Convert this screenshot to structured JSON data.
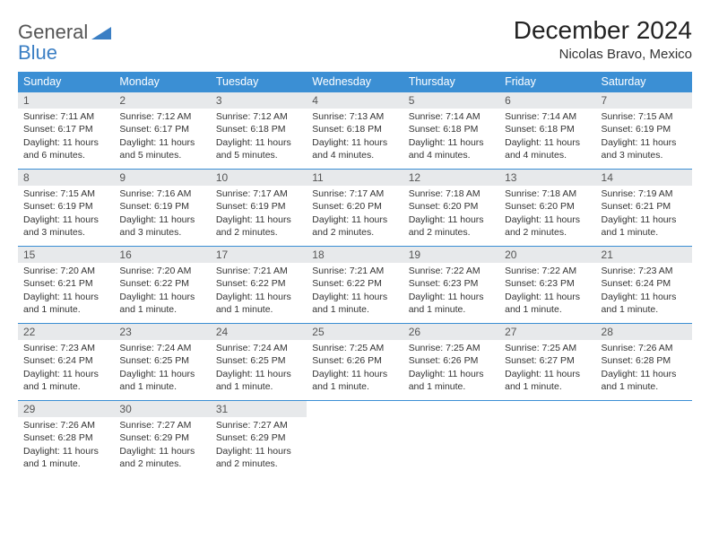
{
  "logo": {
    "line1": "General",
    "line2": "Blue"
  },
  "title": "December 2024",
  "subtitle": "Nicolas Bravo, Mexico",
  "colors": {
    "header_bg": "#3b8fd4",
    "header_text": "#ffffff",
    "daynum_bg": "#e7e9eb",
    "row_divider": "#3b8fd4",
    "logo_blue": "#3b7fc4"
  },
  "weekdays": [
    "Sunday",
    "Monday",
    "Tuesday",
    "Wednesday",
    "Thursday",
    "Friday",
    "Saturday"
  ],
  "days": [
    {
      "n": 1,
      "sr": "7:11 AM",
      "ss": "6:17 PM",
      "dl": "11 hours and 6 minutes."
    },
    {
      "n": 2,
      "sr": "7:12 AM",
      "ss": "6:17 PM",
      "dl": "11 hours and 5 minutes."
    },
    {
      "n": 3,
      "sr": "7:12 AM",
      "ss": "6:18 PM",
      "dl": "11 hours and 5 minutes."
    },
    {
      "n": 4,
      "sr": "7:13 AM",
      "ss": "6:18 PM",
      "dl": "11 hours and 4 minutes."
    },
    {
      "n": 5,
      "sr": "7:14 AM",
      "ss": "6:18 PM",
      "dl": "11 hours and 4 minutes."
    },
    {
      "n": 6,
      "sr": "7:14 AM",
      "ss": "6:18 PM",
      "dl": "11 hours and 4 minutes."
    },
    {
      "n": 7,
      "sr": "7:15 AM",
      "ss": "6:19 PM",
      "dl": "11 hours and 3 minutes."
    },
    {
      "n": 8,
      "sr": "7:15 AM",
      "ss": "6:19 PM",
      "dl": "11 hours and 3 minutes."
    },
    {
      "n": 9,
      "sr": "7:16 AM",
      "ss": "6:19 PM",
      "dl": "11 hours and 3 minutes."
    },
    {
      "n": 10,
      "sr": "7:17 AM",
      "ss": "6:19 PM",
      "dl": "11 hours and 2 minutes."
    },
    {
      "n": 11,
      "sr": "7:17 AM",
      "ss": "6:20 PM",
      "dl": "11 hours and 2 minutes."
    },
    {
      "n": 12,
      "sr": "7:18 AM",
      "ss": "6:20 PM",
      "dl": "11 hours and 2 minutes."
    },
    {
      "n": 13,
      "sr": "7:18 AM",
      "ss": "6:20 PM",
      "dl": "11 hours and 2 minutes."
    },
    {
      "n": 14,
      "sr": "7:19 AM",
      "ss": "6:21 PM",
      "dl": "11 hours and 1 minute."
    },
    {
      "n": 15,
      "sr": "7:20 AM",
      "ss": "6:21 PM",
      "dl": "11 hours and 1 minute."
    },
    {
      "n": 16,
      "sr": "7:20 AM",
      "ss": "6:22 PM",
      "dl": "11 hours and 1 minute."
    },
    {
      "n": 17,
      "sr": "7:21 AM",
      "ss": "6:22 PM",
      "dl": "11 hours and 1 minute."
    },
    {
      "n": 18,
      "sr": "7:21 AM",
      "ss": "6:22 PM",
      "dl": "11 hours and 1 minute."
    },
    {
      "n": 19,
      "sr": "7:22 AM",
      "ss": "6:23 PM",
      "dl": "11 hours and 1 minute."
    },
    {
      "n": 20,
      "sr": "7:22 AM",
      "ss": "6:23 PM",
      "dl": "11 hours and 1 minute."
    },
    {
      "n": 21,
      "sr": "7:23 AM",
      "ss": "6:24 PM",
      "dl": "11 hours and 1 minute."
    },
    {
      "n": 22,
      "sr": "7:23 AM",
      "ss": "6:24 PM",
      "dl": "11 hours and 1 minute."
    },
    {
      "n": 23,
      "sr": "7:24 AM",
      "ss": "6:25 PM",
      "dl": "11 hours and 1 minute."
    },
    {
      "n": 24,
      "sr": "7:24 AM",
      "ss": "6:25 PM",
      "dl": "11 hours and 1 minute."
    },
    {
      "n": 25,
      "sr": "7:25 AM",
      "ss": "6:26 PM",
      "dl": "11 hours and 1 minute."
    },
    {
      "n": 26,
      "sr": "7:25 AM",
      "ss": "6:26 PM",
      "dl": "11 hours and 1 minute."
    },
    {
      "n": 27,
      "sr": "7:25 AM",
      "ss": "6:27 PM",
      "dl": "11 hours and 1 minute."
    },
    {
      "n": 28,
      "sr": "7:26 AM",
      "ss": "6:28 PM",
      "dl": "11 hours and 1 minute."
    },
    {
      "n": 29,
      "sr": "7:26 AM",
      "ss": "6:28 PM",
      "dl": "11 hours and 1 minute."
    },
    {
      "n": 30,
      "sr": "7:27 AM",
      "ss": "6:29 PM",
      "dl": "11 hours and 2 minutes."
    },
    {
      "n": 31,
      "sr": "7:27 AM",
      "ss": "6:29 PM",
      "dl": "11 hours and 2 minutes."
    }
  ],
  "labels": {
    "sunrise": "Sunrise:",
    "sunset": "Sunset:",
    "daylight": "Daylight:"
  }
}
